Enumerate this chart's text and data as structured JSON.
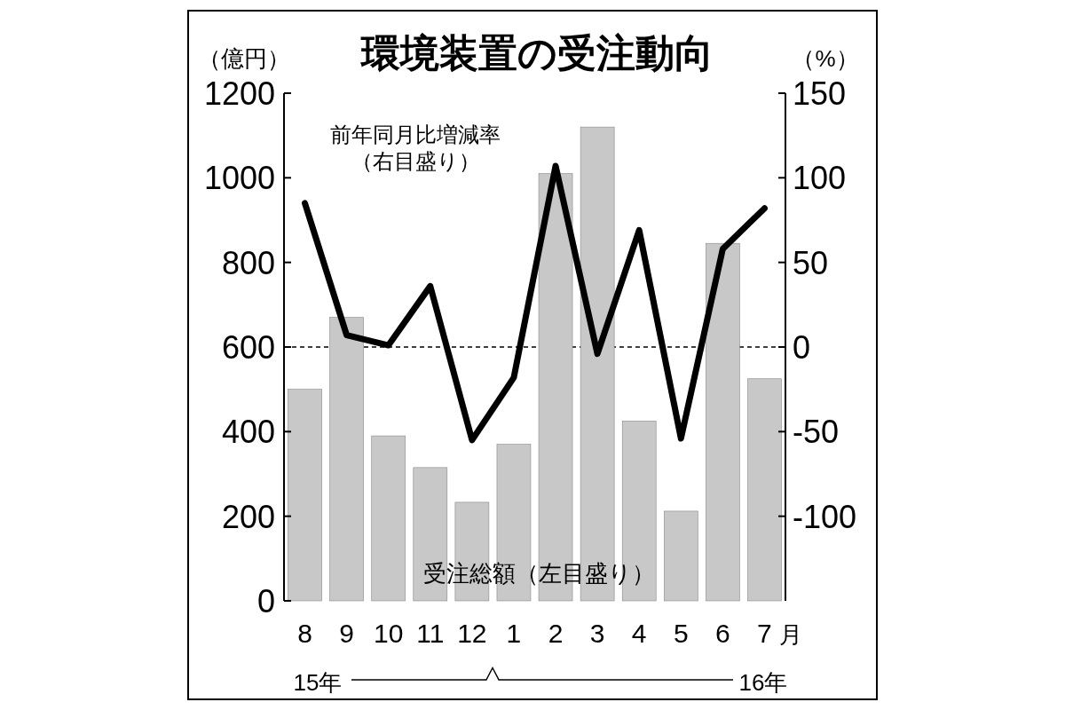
{
  "chart_data": {
    "type": "bar",
    "title": "環境装置の受注動向",
    "ylabel": "（億円）",
    "y2label": "（%）",
    "categories": [
      "8",
      "9",
      "10",
      "11",
      "12",
      "1",
      "2",
      "3",
      "4",
      "5",
      "6",
      "7"
    ],
    "series": [
      {
        "name": "受注総額（左目盛り）",
        "color": "#c8c8c8",
        "values": [
          500,
          670,
          390,
          315,
          233,
          370,
          1010,
          1120,
          425,
          212,
          845,
          525
        ]
      },
      {
        "name": "前年同月比増減率（右目盛り）",
        "type": "line",
        "axis": "y2",
        "color": "#000000",
        "values": [
          85,
          7,
          1,
          36,
          -55,
          -18,
          107,
          -4,
          69,
          -54,
          58,
          82
        ]
      }
    ],
    "ylim": [
      0,
      1200
    ],
    "yticks": [
      0,
      200,
      400,
      600,
      800,
      1000,
      1200
    ],
    "y2lim": [
      -150,
      150
    ],
    "y2ticks": [
      -100,
      -50,
      0,
      50,
      100,
      150
    ],
    "ref_lines": [
      {
        "axis": "y2",
        "value": 0,
        "line_style": "dashed",
        "color": "#000000"
      }
    ],
    "annotations": [
      "月",
      "15年",
      "16年"
    ],
    "grid": false,
    "marker": "none",
    "line_style": "solid"
  }
}
